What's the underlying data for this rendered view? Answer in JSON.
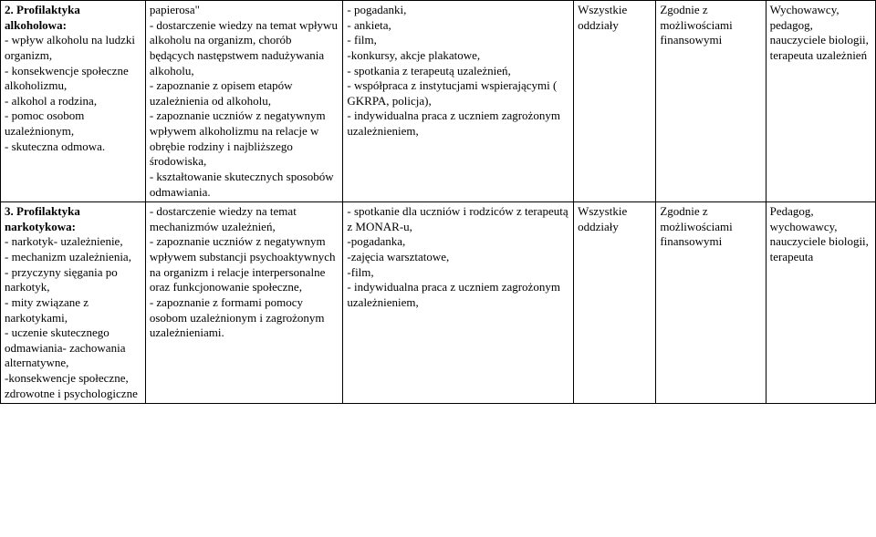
{
  "table": {
    "rows": [
      {
        "c1_title": "2. Profilaktyka alkoholowa:",
        "c1_items": "- wpływ alkoholu na ludzki organizm,\n- konsekwencje społeczne alkoholizmu,\n- alkohol a rodzina,\n- pomoc osobom uzależnionym,\n- skuteczna odmowa.",
        "c2_prefix": "papierosa\"",
        "c2_items": "- dostarczenie wiedzy na temat wpływu alkoholu na organizm, chorób będących następstwem nadużywania alkoholu,\n- zapoznanie z opisem etapów uzależnienia od alkoholu,\n- zapoznanie uczniów z negatywnym wpływem alkoholizmu na relacje w obrębie rodziny i najbliższego środowiska,\n- kształtowanie skutecznych sposobów odmawiania.",
        "c3_items": "- pogadanki,\n- ankieta,\n- film,\n-konkursy, akcje plakatowe,\n- spotkania z terapeutą uzależnień,\n- współpraca z instytucjami wspierającymi ( GKRPA, policja),\n- indywidualna praca z uczniem zagrożonym uzależnieniem,",
        "c4": "Wszystkie oddziały",
        "c5": "Zgodnie z możliwościami finansowymi",
        "c6": "Wychowawcy, pedagog, nauczyciele biologii, terapeuta uzależnień"
      },
      {
        "c1_title": "3. Profilaktyka narkotykowa:",
        "c1_items": "- narkotyk- uzależnienie,\n- mechanizm uzależnienia,\n- przyczyny sięgania po narkotyk,\n- mity związane z narkotykami,\n- uczenie skutecznego odmawiania- zachowania alternatywne,\n-konsekwencje społeczne, zdrowotne i psychologiczne",
        "c2_prefix": "",
        "c2_items": "- dostarczenie wiedzy na temat mechanizmów uzależnień,\n- zapoznanie uczniów z negatywnym wpływem substancji psychoaktywnych na organizm i relacje interpersonalne oraz funkcjonowanie społeczne,\n- zapoznanie z formami pomocy osobom uzależnionym i zagrożonym uzależnieniami.",
        "c3_items": "- spotkanie dla uczniów i rodziców z terapeutą z MONAR-u,\n-pogadanka,\n-zajęcia warsztatowe,\n-film,\n- indywidualna praca z uczniem zagrożonym uzależnieniem,",
        "c4": "Wszystkie oddziały",
        "c5": "Zgodnie z możliwościami finansowymi",
        "c6": "Pedagog, wychowawcy, nauczyciele biologii, terapeuta"
      }
    ]
  }
}
